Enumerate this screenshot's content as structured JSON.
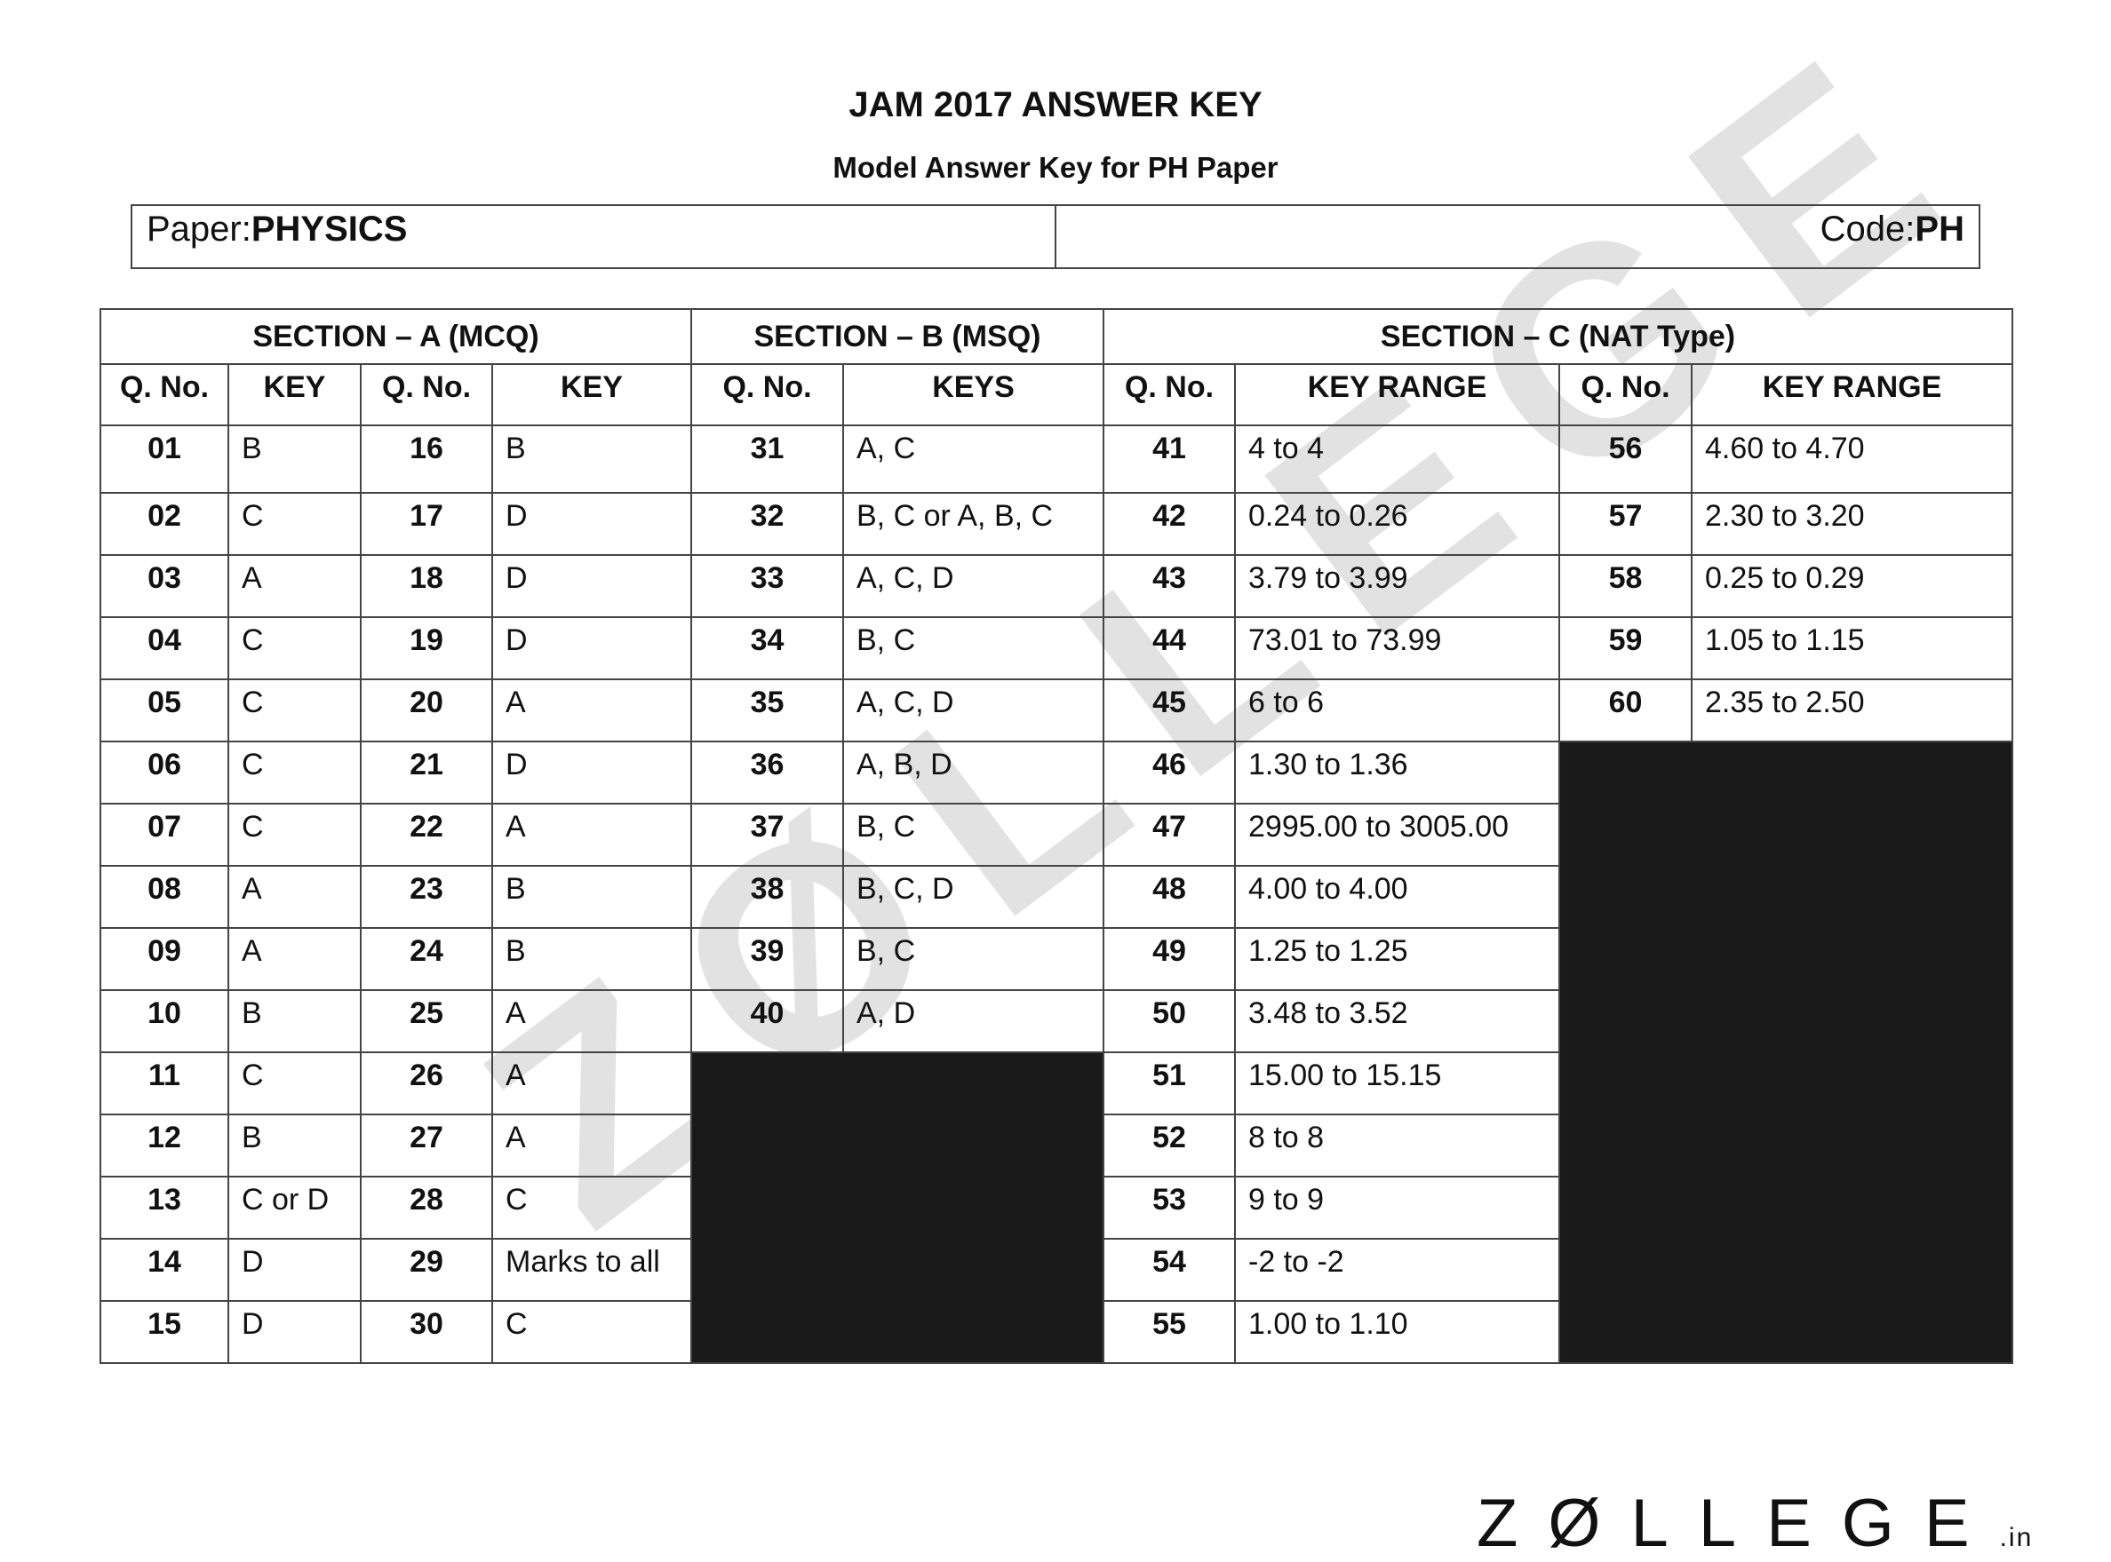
{
  "header": {
    "title": "JAM 2017 ANSWER KEY",
    "subtitle": "Model Answer Key for PH Paper"
  },
  "paper_info": {
    "paper_label": "Paper:",
    "paper_value": "PHYSICS",
    "code_label": "Code:",
    "code_value": "PH"
  },
  "table": {
    "sections": [
      "SECTION – A (MCQ)",
      "SECTION – B (MSQ)",
      "SECTION – C (NAT Type)"
    ],
    "columns": [
      "Q. No.",
      "KEY",
      "Q. No.",
      "KEY",
      "Q. No.",
      "KEYS",
      "Q. No.",
      "KEY RANGE",
      "Q. No.",
      "KEY RANGE"
    ],
    "rows": [
      [
        "01",
        "B",
        "16",
        "B",
        "31",
        "A, C",
        "41",
        "4 to 4",
        "56",
        "4.60 to 4.70"
      ],
      [
        "02",
        "C",
        "17",
        "D",
        "32",
        "B, C or A, B, C",
        "42",
        "0.24 to 0.26",
        "57",
        "2.30 to 3.20"
      ],
      [
        "03",
        "A",
        "18",
        "D",
        "33",
        "A, C, D",
        "43",
        "3.79 to 3.99",
        "58",
        "0.25 to 0.29"
      ],
      [
        "04",
        "C",
        "19",
        "D",
        "34",
        "B, C",
        "44",
        "73.01 to 73.99",
        "59",
        "1.05 to 1.15"
      ],
      [
        "05",
        "C",
        "20",
        "A",
        "35",
        "A, C, D",
        "45",
        "6 to 6",
        "60",
        "2.35 to 2.50"
      ],
      [
        "06",
        "C",
        "21",
        "D",
        "36",
        "A, B, D",
        "46",
        "1.30 to 1.36",
        null,
        null
      ],
      [
        "07",
        "C",
        "22",
        "A",
        "37",
        "B, C",
        "47",
        "2995.00 to 3005.00",
        null,
        null
      ],
      [
        "08",
        "A",
        "23",
        "B",
        "38",
        "B, C, D",
        "48",
        "4.00 to 4.00",
        null,
        null
      ],
      [
        "09",
        "A",
        "24",
        "B",
        "39",
        "B, C",
        "49",
        "1.25 to 1.25",
        null,
        null
      ],
      [
        "10",
        "B",
        "25",
        "A",
        "40",
        "A, D",
        "50",
        "3.48 to 3.52",
        null,
        null
      ],
      [
        "11",
        "C",
        "26",
        "A",
        null,
        null,
        "51",
        "15.00 to 15.15",
        null,
        null
      ],
      [
        "12",
        "B",
        "27",
        "A",
        null,
        null,
        "52",
        "8 to 8",
        null,
        null
      ],
      [
        "13",
        "C or D",
        "28",
        "C",
        null,
        null,
        "53",
        "9 to 9",
        null,
        null
      ],
      [
        "14",
        "D",
        "29",
        "Marks to all",
        null,
        null,
        "54",
        "-2 to -2",
        null,
        null
      ],
      [
        "15",
        "D",
        "30",
        "C",
        null,
        null,
        "55",
        "1.00 to 1.10",
        null,
        null
      ]
    ]
  },
  "watermark": "Z@LLEGE.in",
  "footer_logo": {
    "main": "Z@LLEGE",
    "suffix": ".in"
  },
  "colors": {
    "blackout": "#1a1a1a",
    "border": "#444444",
    "watermark": "#969696"
  }
}
